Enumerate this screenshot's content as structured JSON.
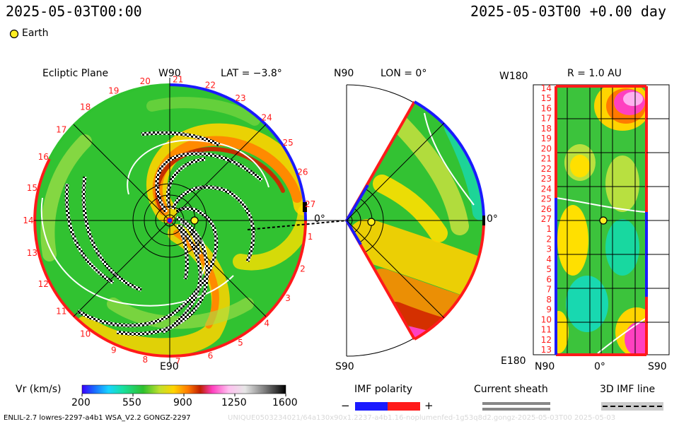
{
  "header": {
    "datetime_left": "2025-05-03T00:00",
    "datetime_right": "2025-05-03T00 +0.00 day",
    "legend_earth": "Earth"
  },
  "ecliptic": {
    "title": "Ecliptic Plane",
    "top_label": "W90",
    "bottom_label": "E90",
    "right_label": "0°",
    "lat_label": "LAT = −3.8°",
    "ticks": [
      "20",
      "21",
      "22",
      "23",
      "24",
      "25",
      "26",
      "27",
      "1",
      "2",
      "3",
      "4",
      "5",
      "6",
      "7",
      "8",
      "9",
      "10",
      "11",
      "12",
      "13",
      "14",
      "15",
      "16",
      "17",
      "18",
      "19"
    ]
  },
  "meridional": {
    "top_label": "N90",
    "bottom_label": "S90",
    "right_label": "0°",
    "lon_label": "LON = 0°"
  },
  "radial": {
    "top_label": "W180",
    "bottom_label": "E180",
    "r_label": "R = 1.0 AU",
    "x_left": "N90",
    "x_mid": "0°",
    "x_right": "S90",
    "y_labels": [
      "14",
      "15",
      "16",
      "17",
      "18",
      "19",
      "20",
      "21",
      "22",
      "23",
      "24",
      "25",
      "26",
      "27",
      "1",
      "2",
      "3",
      "4",
      "5",
      "6",
      "7",
      "8",
      "9",
      "10",
      "11",
      "12",
      "13"
    ]
  },
  "colorbar": {
    "title": "Vr (km/s)",
    "ticks": [
      "200",
      "550",
      "900",
      "1250",
      "1600"
    ]
  },
  "imf_legend": {
    "title": "IMF polarity",
    "minus": "−",
    "plus": "+"
  },
  "sheath_legend": {
    "title": "Current sheath"
  },
  "imfline_legend": {
    "title": "3D IMF line"
  },
  "footer": {
    "model_text": "ENLIL-2.7 lowres-2297-a4b1 WSA_V2.2 GONGZ-2297",
    "run_text": "UNIQUE0503234021/64a130x90x1.2237-a4b1.16-noplumenfed-1g53q8d2.gongz-2025-05-03T00  2025-05-03"
  },
  "colors": {
    "positive": "#ff1a1a",
    "negative": "#1a1aff",
    "earth": "#ffee22",
    "background": "#2fc22f"
  }
}
